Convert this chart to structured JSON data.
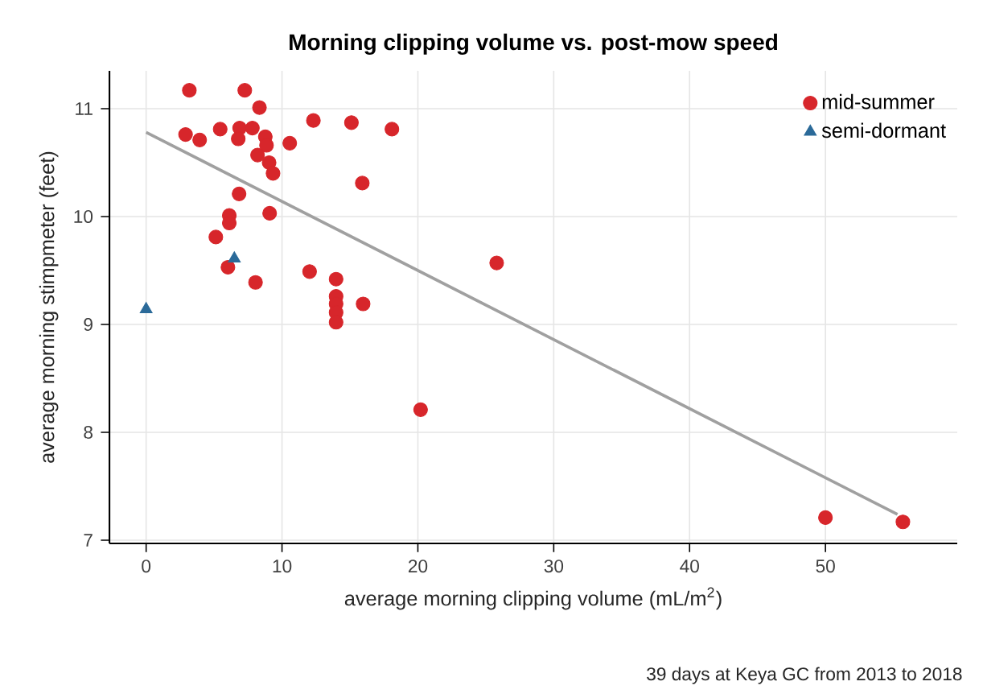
{
  "chart_data": {
    "type": "scatter",
    "title": "Morning clipping volume vs. post-mow speed",
    "xlabel": "average morning clipping volume (mL/m$^{2}$)",
    "ylabel": "average morning stimpmeter (feet)",
    "annotations": [
      "39 days at Keya GC from 2013 to 2018"
    ],
    "xlim": [
      -2.7,
      59.7
    ],
    "ylim": [
      6.97,
      11.35
    ],
    "xticks": [
      0,
      10,
      20,
      30,
      40,
      50
    ],
    "yticks": [
      7,
      8,
      9,
      10,
      11
    ],
    "grid": true,
    "legend": "top right",
    "series": [
      {
        "name": "mid-summer",
        "color": "#d7262b",
        "marker": "circle",
        "x": [
          3.18,
          7.26,
          8.34,
          12.31,
          15.11,
          18.09,
          2.9,
          3.94,
          5.45,
          6.88,
          7.82,
          6.78,
          8.77,
          8.86,
          8.2,
          9.05,
          9.34,
          10.57,
          15.91,
          6.84,
          9.09,
          6.12,
          6.12,
          5.13,
          6.02,
          8.05,
          12.03,
          13.98,
          13.98,
          13.98,
          13.98,
          13.98,
          15.97,
          25.8,
          20.2,
          50,
          55.7
        ],
        "values": [
          11.17,
          11.17,
          11.01,
          10.89,
          10.87,
          10.81,
          10.76,
          10.71,
          10.81,
          10.82,
          10.82,
          10.72,
          10.74,
          10.66,
          10.57,
          10.5,
          10.4,
          10.68,
          10.31,
          10.21,
          10.03,
          10.01,
          9.94,
          9.81,
          9.53,
          9.39,
          9.49,
          9.42,
          9.26,
          9.19,
          9.11,
          9.02,
          9.19,
          9.57,
          8.21,
          7.21,
          7.17
        ]
      },
      {
        "name": "semi-dormant",
        "color": "#2b6a99",
        "marker": "triangle",
        "x": [
          0,
          6.49
        ],
        "values": [
          9.14,
          9.61
        ]
      },
      {
        "type": "line",
        "color": "#a0a0a0",
        "marker": "none",
        "x": [
          0,
          55.3
        ],
        "values": [
          10.78,
          7.24
        ]
      }
    ]
  }
}
